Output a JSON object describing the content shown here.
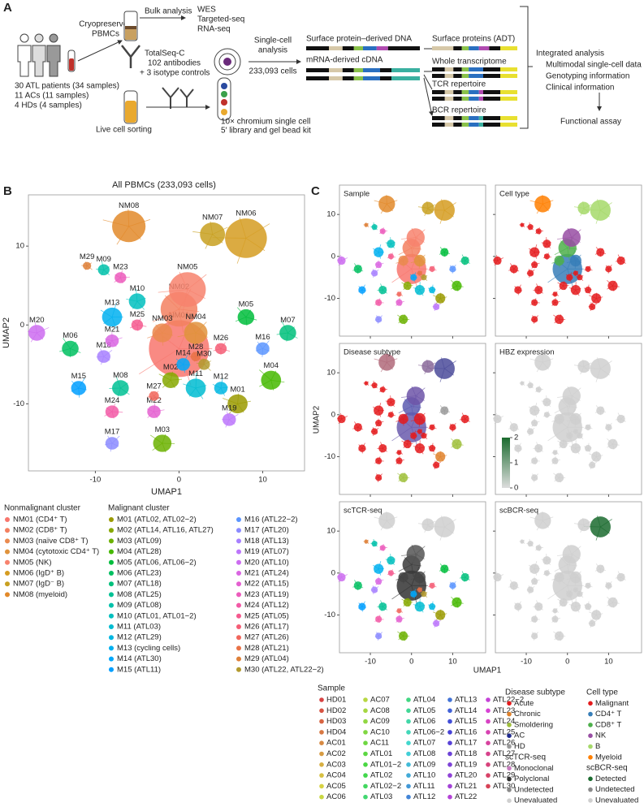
{
  "panel_a": {
    "letter": "A",
    "cohort": [
      "30 ATL patients (34 samples)",
      "11 ACs (11 samples)",
      "4 HDs (4 samples)"
    ],
    "pbmc": [
      "Cryopreserved",
      "PBMCs"
    ],
    "bulk": "Bulk analysis",
    "bulk_assays": [
      "WES",
      "Targeted-seq",
      "RNA-seq"
    ],
    "totalseq": [
      "TotalSeq-C",
      "102 antibodies",
      "+ 3 isotype controls"
    ],
    "sorting": "Live cell sorting",
    "single_cell": [
      "Single-cell",
      "analysis",
      "233,093 cells"
    ],
    "chromium": [
      "10× chromium single cell",
      "5′ library and gel bead kit"
    ],
    "libraries": [
      "Surface protein–derived DNA",
      "mRNA-derived cDNA"
    ],
    "outputs": [
      "Surface proteins (ADT)",
      "Whole transcriptome",
      "TCR repertoire",
      "BCR repertoire"
    ],
    "integrated": "Integrated analysis",
    "integrated_items": [
      "Multimodal single-cell data",
      "Genotyping information",
      "Clinical information"
    ],
    "functional": "Functional assay"
  },
  "panel_b": {
    "letter": "B",
    "nonmalignant_title": "Nonmalignant cluster",
    "malignant_title": "Malignant cluster"
  },
  "panel_c": {
    "letter": "C",
    "x_label": "UMAP1",
    "y_label": "UMAP2",
    "sample_legend": {
      "title": "Sample",
      "items": [
        "HD01",
        "HD02",
        "HD03",
        "HD04",
        "AC01",
        "AC02",
        "AC03",
        "AC04",
        "AC05",
        "AC06",
        "AC07",
        "AC08",
        "AC09",
        "AC10",
        "AC11",
        "ATL01",
        "ATL01−2",
        "ATL02",
        "ATL02−2",
        "ATL03",
        "ATL04",
        "ATL05",
        "ATL06",
        "ATL06−2",
        "ATL07",
        "ATL08",
        "ATL09",
        "ATL10",
        "ATL11",
        "ATL12",
        "ATL13",
        "ATL14",
        "ATL15",
        "ATL16",
        "ATL17",
        "ATL18",
        "ATL19",
        "ATL20",
        "ATL21",
        "ATL22",
        "ATL22−2",
        "ATL23",
        "ATL24",
        "ATL25",
        "ATL26",
        "ATL27",
        "ATL28",
        "ATL29",
        "ATL30"
      ]
    },
    "disease_legend": {
      "title": "Disease subtype",
      "items": [
        {
          "name": "Acute",
          "color": "#e41a1c"
        },
        {
          "name": "Chronic",
          "color": "#e0822b"
        },
        {
          "name": "Smoldering",
          "color": "#9fbf3b"
        },
        {
          "name": "AC",
          "color": "#1f2a8f"
        },
        {
          "name": "HD",
          "color": "#9a9a9a"
        }
      ]
    },
    "tcr_legend": {
      "title": "scTCR-seq",
      "items": [
        {
          "name": "Monoclonal",
          "color": "#c77cbf"
        },
        {
          "name": "Polyclonal",
          "color": "#333333"
        },
        {
          "name": "Undetected",
          "color": "#8a8a8a"
        },
        {
          "name": "Unevaluated",
          "color": "#cfcfcf"
        }
      ]
    },
    "cell_type_legend": {
      "title": "Cell type",
      "items": [
        {
          "name": "Malignant",
          "color": "#e41a1c"
        },
        {
          "name": "CD4⁺ T",
          "color": "#377eb8"
        },
        {
          "name": "CD8⁺ T",
          "color": "#4daf4a"
        },
        {
          "name": "NK",
          "color": "#984ea3"
        },
        {
          "name": "B",
          "color": "#a6d96a"
        },
        {
          "name": "Myeloid",
          "color": "#ff7f00"
        }
      ]
    },
    "bcr_legend": {
      "title": "scBCR-seq",
      "items": [
        {
          "name": "Detected",
          "color": "#1b6b2f"
        },
        {
          "name": "Undetected",
          "color": "#8a8a8a"
        },
        {
          "name": "Unevaluated",
          "color": "#cfcfcf"
        }
      ]
    }
  },
  "chart_data": [
    {
      "type": "scatter",
      "title": "All PBMCs (233,093 cells)",
      "x_label": "UMAP1",
      "y_label": "UMAP2",
      "xlim": [
        -18,
        15
      ],
      "ylim": [
        -18.5,
        16.5
      ],
      "xticks": [
        -10,
        0,
        10
      ],
      "yticks": [
        -10,
        0,
        10
      ],
      "points": [
        {
          "name": "NM01",
          "label": "NM01 (CD4⁺ T)",
          "x": 0,
          "y": -3,
          "size": 3.6,
          "color": "#f8766d"
        },
        {
          "name": "NM02",
          "label": "NM02 (CD8⁺ T)",
          "x": 0,
          "y": 2,
          "size": 2.2,
          "color": "#f38060"
        },
        {
          "name": "NM03",
          "label": "NM03 (naïve CD8⁺ T)",
          "x": -2,
          "y": -1,
          "size": 1.2,
          "color": "#ea8a4f"
        },
        {
          "name": "NM04",
          "label": "NM04 (cytotoxic CD4⁺ T)",
          "x": 2,
          "y": -1,
          "size": 1.4,
          "color": "#e0933c"
        },
        {
          "name": "NM05",
          "label": "NM05 (NK)",
          "x": 1,
          "y": 4.5,
          "size": 2.2,
          "color": "#f7826d"
        },
        {
          "name": "NM06",
          "label": "NM06 (IgD⁺ B)",
          "x": 8,
          "y": 11,
          "size": 2.5,
          "color": "#d59c21"
        },
        {
          "name": "NM07",
          "label": "NM07 (IgD⁻ B)",
          "x": 4,
          "y": 11.5,
          "size": 1.5,
          "color": "#c8a020"
        },
        {
          "name": "NM08",
          "label": "NM08 (myeloid)",
          "x": -6,
          "y": 12.5,
          "size": 2,
          "color": "#e2892a"
        },
        {
          "name": "M01",
          "label": "M01 (ATL02, ATL02−2)",
          "x": 7,
          "y": -10,
          "size": 1.2,
          "color": "#9a9a00"
        },
        {
          "name": "M02",
          "label": "M02 (ATL14, ATL16, ATL27)",
          "x": -1,
          "y": -7,
          "size": 1,
          "color": "#86a800"
        },
        {
          "name": "M03",
          "label": "M03 (ATL09)",
          "x": -2,
          "y": -15,
          "size": 1.1,
          "color": "#6bb100"
        },
        {
          "name": "M04",
          "label": "M04 (ATL28)",
          "x": 11,
          "y": -7,
          "size": 1.2,
          "color": "#45b800"
        },
        {
          "name": "M05",
          "label": "M05 (ATL06, ATL06−2)",
          "x": 8,
          "y": 1,
          "size": 1,
          "color": "#00bd3c"
        },
        {
          "name": "M06",
          "label": "M06 (ATL23)",
          "x": -13,
          "y": -3,
          "size": 1,
          "color": "#00bf60"
        },
        {
          "name": "M07",
          "label": "M07 (ATL18)",
          "x": 13,
          "y": -1,
          "size": 1,
          "color": "#00c07b"
        },
        {
          "name": "M08",
          "label": "M08 (ATL25)",
          "x": -7,
          "y": -8,
          "size": 1,
          "color": "#00c194"
        },
        {
          "name": "M09",
          "label": "M09 (ATL08)",
          "x": -9,
          "y": 7,
          "size": 0.7,
          "color": "#00c1aa"
        },
        {
          "name": "M10",
          "label": "M10 (ATL01, ATL01−2)",
          "x": -5,
          "y": 3,
          "size": 1,
          "color": "#00bfbe"
        },
        {
          "name": "M11",
          "label": "M11 (ATL03)",
          "x": 2,
          "y": -8,
          "size": 1.2,
          "color": "#00bcd1"
        },
        {
          "name": "M12",
          "label": "M12 (ATL29)",
          "x": 5,
          "y": -8,
          "size": 0.8,
          "color": "#00b7e2"
        },
        {
          "name": "M13",
          "label": "M13 (cycling cells)",
          "x": -8,
          "y": 1,
          "size": 1.2,
          "color": "#00b0f0"
        },
        {
          "name": "M14",
          "label": "M14 (ATL30)",
          "x": 0.5,
          "y": -5,
          "size": 0.8,
          "color": "#00a8fb"
        },
        {
          "name": "M15",
          "label": "M15 (ATL11)",
          "x": -12,
          "y": -8,
          "size": 0.9,
          "color": "#009fff"
        },
        {
          "name": "M16",
          "label": "M16 (ATL22−2)",
          "x": 10,
          "y": -3,
          "size": 0.8,
          "color": "#5b95ff"
        },
        {
          "name": "M17",
          "label": "M17 (ATL20)",
          "x": -8,
          "y": -15,
          "size": 0.8,
          "color": "#8b8bff"
        },
        {
          "name": "M18",
          "label": "M18 (ATL13)",
          "x": -9,
          "y": -4,
          "size": 0.8,
          "color": "#a780ff"
        },
        {
          "name": "M19",
          "label": "M19 (ATL07)",
          "x": 6,
          "y": -12,
          "size": 0.8,
          "color": "#bc76fb"
        },
        {
          "name": "M20",
          "label": "M20 (ATL10)",
          "x": -17,
          "y": -1,
          "size": 1,
          "color": "#cc6cf0"
        },
        {
          "name": "M21",
          "label": "M21 (ATL24)",
          "x": -8,
          "y": -2,
          "size": 0.8,
          "color": "#d965e2"
        },
        {
          "name": "M22",
          "label": "M22 (ATL15)",
          "x": -3,
          "y": -11,
          "size": 0.8,
          "color": "#e45fd0"
        },
        {
          "name": "M23",
          "label": "M23 (ATL19)",
          "x": -7,
          "y": 6,
          "size": 0.7,
          "color": "#ec5bbc"
        },
        {
          "name": "M24",
          "label": "M24 (ATL12)",
          "x": -8,
          "y": -11,
          "size": 0.8,
          "color": "#f259a6"
        },
        {
          "name": "M25",
          "label": "M25 (ATL05)",
          "x": -5,
          "y": 0,
          "size": 0.7,
          "color": "#f5598e"
        },
        {
          "name": "M26",
          "label": "M26 (ATL17)",
          "x": 5,
          "y": -3,
          "size": 0.7,
          "color": "#f55d75"
        },
        {
          "name": "M27",
          "label": "M27 (ATL26)",
          "x": -3,
          "y": -9,
          "size": 0.6,
          "color": "#f1665c"
        },
        {
          "name": "M28",
          "label": "M28 (ATL21)",
          "x": 2,
          "y": -4,
          "size": 0.6,
          "color": "#e97247"
        },
        {
          "name": "M29",
          "label": "M29 (ATL04)",
          "x": -11,
          "y": 7.5,
          "size": 0.5,
          "color": "#de8038"
        },
        {
          "name": "M30",
          "label": "M30 (ATL22, ATL22−2)",
          "x": 3,
          "y": -5,
          "size": 0.7,
          "color": "#b39a2f"
        }
      ]
    },
    {
      "type": "scatter",
      "title": "Sample",
      "xlim": [
        -17.5,
        18
      ],
      "ylim": [
        -19,
        17
      ],
      "xticks": [
        -10,
        0,
        10
      ],
      "yticks": [
        -10,
        0,
        10
      ],
      "x_tick_labels": false,
      "y_tick_labels": true,
      "color_by": "cluster"
    },
    {
      "type": "scatter",
      "title": "Cell type",
      "xlim": [
        -17.5,
        18
      ],
      "ylim": [
        -19,
        17
      ],
      "xticks": [
        -10,
        0,
        10
      ],
      "yticks": [
        -10,
        0,
        10
      ],
      "x_tick_labels": false,
      "y_tick_labels": false,
      "base_color": "#e41a1c",
      "highlights": [
        {
          "cluster": "NM01",
          "color": "#377eb8"
        },
        {
          "cluster": "NM04",
          "color": "#377eb8"
        },
        {
          "cluster": "NM02",
          "color": "#4daf4a"
        },
        {
          "cluster": "NM03",
          "color": "#4daf4a"
        },
        {
          "cluster": "NM05",
          "color": "#984ea3"
        },
        {
          "cluster": "NM06",
          "color": "#a6d96a"
        },
        {
          "cluster": "NM07",
          "color": "#a6d96a"
        },
        {
          "cluster": "NM08",
          "color": "#ff7f00"
        }
      ]
    },
    {
      "type": "scatter",
      "title": "Disease subtype",
      "xlim": [
        -17.5,
        18
      ],
      "ylim": [
        -19,
        17
      ],
      "xticks": [
        -10,
        0,
        10
      ],
      "yticks": [
        -10,
        0,
        10
      ],
      "x_tick_labels": false,
      "y_tick_labels": true,
      "base_color": "#e41a1c",
      "highlights": [
        {
          "cluster": "NM01",
          "color": "#6a5aad"
        },
        {
          "cluster": "NM02",
          "color": "#5c5cb0"
        },
        {
          "cluster": "NM05",
          "color": "#6d55a8"
        },
        {
          "cluster": "NM06",
          "color": "#4b4b9a"
        },
        {
          "cluster": "NM07",
          "color": "#8a6a9a"
        },
        {
          "cluster": "NM08",
          "color": "#b06a7a"
        },
        {
          "cluster": "M04",
          "color": "#9fbf3b"
        },
        {
          "cluster": "M03",
          "color": "#9fbf3b"
        },
        {
          "cluster": "M01",
          "color": "#e0822b"
        },
        {
          "cluster": "M05",
          "color": "#9a9a9a"
        }
      ]
    },
    {
      "type": "scatter",
      "title": "HBZ expression",
      "xlim": [
        -17.5,
        18
      ],
      "ylim": [
        -19,
        17
      ],
      "xticks": [
        -10,
        0,
        10
      ],
      "yticks": [
        -10,
        0,
        10
      ],
      "x_tick_labels": false,
      "y_tick_labels": false,
      "base_color": "#cfcfcf",
      "highlights": [],
      "colorbar": {
        "ticks": [
          0,
          1,
          2
        ],
        "colors": [
          "#dddddd",
          "#1b6b2f"
        ]
      }
    },
    {
      "type": "scatter",
      "title": "scTCR-seq",
      "xlim": [
        -17.5,
        18
      ],
      "ylim": [
        -19,
        17
      ],
      "xticks": [
        -10,
        0,
        10
      ],
      "yticks": [
        -10,
        0,
        10
      ],
      "x_tick_labels": true,
      "y_tick_labels": true,
      "color_by": "cluster",
      "highlights": [
        {
          "cluster": "NM01",
          "color": "#333333"
        },
        {
          "cluster": "NM02",
          "color": "#3a3a3a"
        },
        {
          "cluster": "NM03",
          "color": "#444444"
        },
        {
          "cluster": "NM04",
          "color": "#444444"
        },
        {
          "cluster": "NM05",
          "color": "#555555"
        },
        {
          "cluster": "NM06",
          "color": "#cfcfcf"
        },
        {
          "cluster": "NM07",
          "color": "#cfcfcf"
        },
        {
          "cluster": "NM08",
          "color": "#cfcfcf"
        }
      ]
    },
    {
      "type": "scatter",
      "title": "scBCR-seq",
      "xlim": [
        -17.5,
        18
      ],
      "ylim": [
        -19,
        17
      ],
      "xticks": [
        -10,
        0,
        10
      ],
      "yticks": [
        -10,
        0,
        10
      ],
      "x_tick_labels": true,
      "y_tick_labels": false,
      "base_color": "#cfcfcf",
      "highlights": [
        {
          "cluster": "NM06",
          "color": "#1b6b2f"
        }
      ]
    }
  ]
}
